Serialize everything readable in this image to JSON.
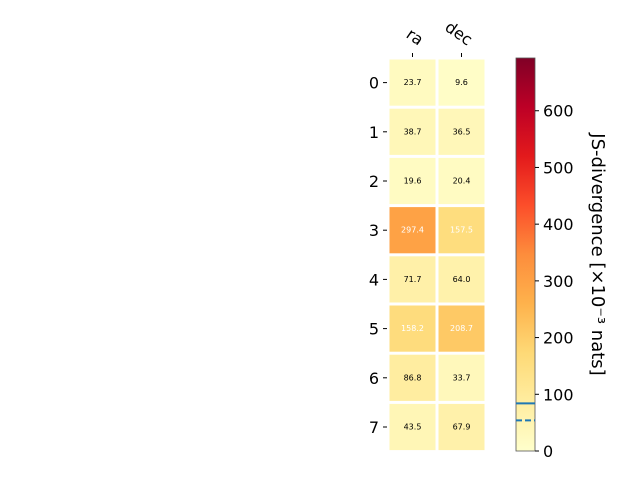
{
  "chart_data": {
    "type": "heatmap",
    "title": "",
    "columns": [
      "ra",
      "dec"
    ],
    "rows": [
      "0",
      "1",
      "2",
      "3",
      "4",
      "5",
      "6",
      "7"
    ],
    "values": [
      [
        23.7,
        9.6
      ],
      [
        38.7,
        36.5
      ],
      [
        19.6,
        20.4
      ],
      [
        297.4,
        157.5
      ],
      [
        71.7,
        64.0
      ],
      [
        158.2,
        208.7
      ],
      [
        86.8,
        33.7
      ],
      [
        43.5,
        67.9
      ]
    ],
    "value_labels": [
      [
        "23.7",
        "9.6"
      ],
      [
        "38.7",
        "36.5"
      ],
      [
        "19.6",
        "20.4"
      ],
      [
        "297.4",
        "157.5"
      ],
      [
        "71.7",
        "64.0"
      ],
      [
        "158.2",
        "208.7"
      ],
      [
        "86.8",
        "33.7"
      ],
      [
        "43.5",
        "67.9"
      ]
    ],
    "colormap": "YlOrRd",
    "colorbar": {
      "label": "JS-divergence [×10⁻³ nats]",
      "range": [
        0,
        693
      ],
      "ticks": [
        0,
        100,
        200,
        300,
        400,
        500,
        600
      ],
      "tick_labels": [
        "0",
        "100",
        "200",
        "300",
        "400",
        "500",
        "600"
      ],
      "reference_lines": [
        {
          "value": 84,
          "style": "solid",
          "color": "#1f77b4"
        },
        {
          "value": 54,
          "style": "dashed",
          "color": "#1f77b4"
        }
      ]
    }
  }
}
